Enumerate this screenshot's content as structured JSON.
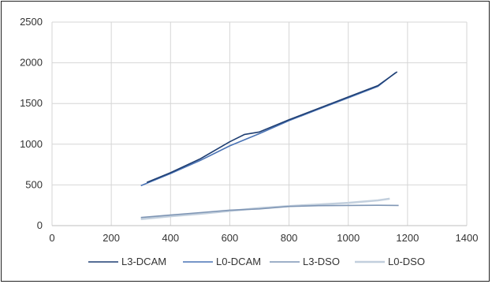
{
  "chart_data": {
    "type": "line",
    "title": "",
    "xlabel": "",
    "ylabel": "",
    "xlim": [
      0,
      1400
    ],
    "ylim": [
      0,
      2500
    ],
    "x_ticks": [
      "0",
      "200",
      "400",
      "600",
      "800",
      "1000",
      "1200",
      "1400"
    ],
    "y_ticks": [
      "0",
      "500",
      "1000",
      "1500",
      "2000",
      "2500"
    ],
    "grid": "vertical and horizontal",
    "legend_position": "bottom",
    "series": [
      {
        "name": "L3-DCAM",
        "color": "#1f3f73",
        "points": [
          [
            320,
            530
          ],
          [
            400,
            650
          ],
          [
            500,
            820
          ],
          [
            600,
            1030
          ],
          [
            650,
            1120
          ],
          [
            700,
            1150
          ],
          [
            800,
            1300
          ],
          [
            900,
            1440
          ],
          [
            1000,
            1580
          ],
          [
            1100,
            1720
          ],
          [
            1165,
            1890
          ]
        ]
      },
      {
        "name": "L0-DCAM",
        "color": "#4a73b5",
        "points": [
          [
            300,
            490
          ],
          [
            400,
            640
          ],
          [
            500,
            800
          ],
          [
            600,
            980
          ],
          [
            700,
            1130
          ],
          [
            800,
            1290
          ],
          [
            900,
            1430
          ],
          [
            1000,
            1570
          ],
          [
            1100,
            1710
          ],
          [
            1160,
            1880
          ]
        ]
      },
      {
        "name": "L3-DSO",
        "color": "#7f96b5",
        "points": [
          [
            300,
            100
          ],
          [
            400,
            130
          ],
          [
            500,
            160
          ],
          [
            600,
            190
          ],
          [
            700,
            205
          ],
          [
            800,
            235
          ],
          [
            900,
            245
          ],
          [
            1000,
            248
          ],
          [
            1100,
            250
          ],
          [
            1170,
            248
          ]
        ]
      },
      {
        "name": "L0-DSO",
        "color": "#c2cfdd",
        "points": [
          [
            300,
            80
          ],
          [
            400,
            115
          ],
          [
            500,
            145
          ],
          [
            600,
            180
          ],
          [
            700,
            215
          ],
          [
            800,
            240
          ],
          [
            900,
            260
          ],
          [
            1000,
            280
          ],
          [
            1100,
            310
          ],
          [
            1140,
            330
          ]
        ]
      }
    ]
  }
}
